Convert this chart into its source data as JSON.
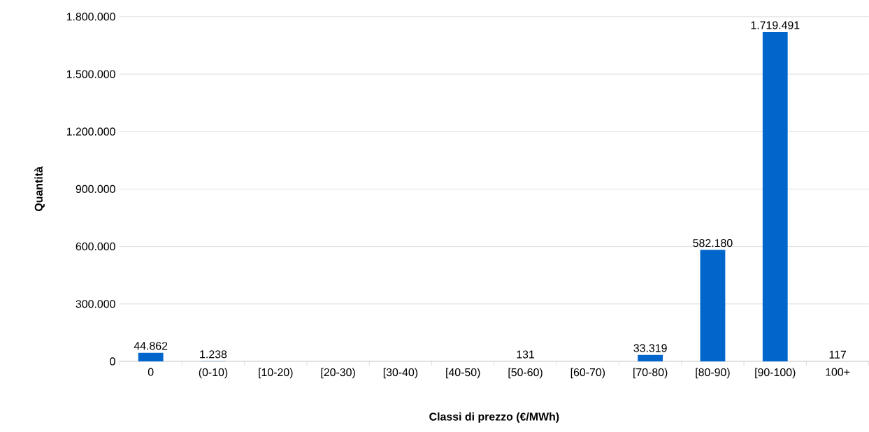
{
  "chart_data": {
    "type": "bar",
    "xlabel": "Classi di prezzo (€/MWh)",
    "ylabel": "Quantità",
    "categories": [
      "0",
      "(0-10)",
      "[10-20)",
      "[20-30)",
      "[30-40)",
      "[40-50)",
      "[50-60)",
      "[60-70)",
      "[70-80)",
      "[80-90)",
      "[90-100)",
      "100+"
    ],
    "values": [
      44862,
      1238,
      0,
      0,
      0,
      0,
      131,
      0,
      33319,
      582180,
      1719491,
      117
    ],
    "value_labels": [
      "44.862",
      "1.238",
      null,
      null,
      null,
      null,
      "131",
      null,
      "33.319",
      "582.180",
      "1.719.491",
      "117"
    ],
    "color": "#0066cc",
    "ylim": [
      0,
      1800000
    ],
    "yticks": [
      0,
      {
        "value": 300000,
        "label": "300.000"
      },
      {
        "value": 600000,
        "label": "600.000"
      },
      {
        "value": 900000,
        "label": "900.000"
      },
      {
        "value": 1200000,
        "label": "1.200.000"
      },
      {
        "value": 1500000,
        "label": "1.500.000"
      },
      {
        "value": 1800000,
        "label": "1.800.000"
      }
    ],
    "grid": "y"
  }
}
